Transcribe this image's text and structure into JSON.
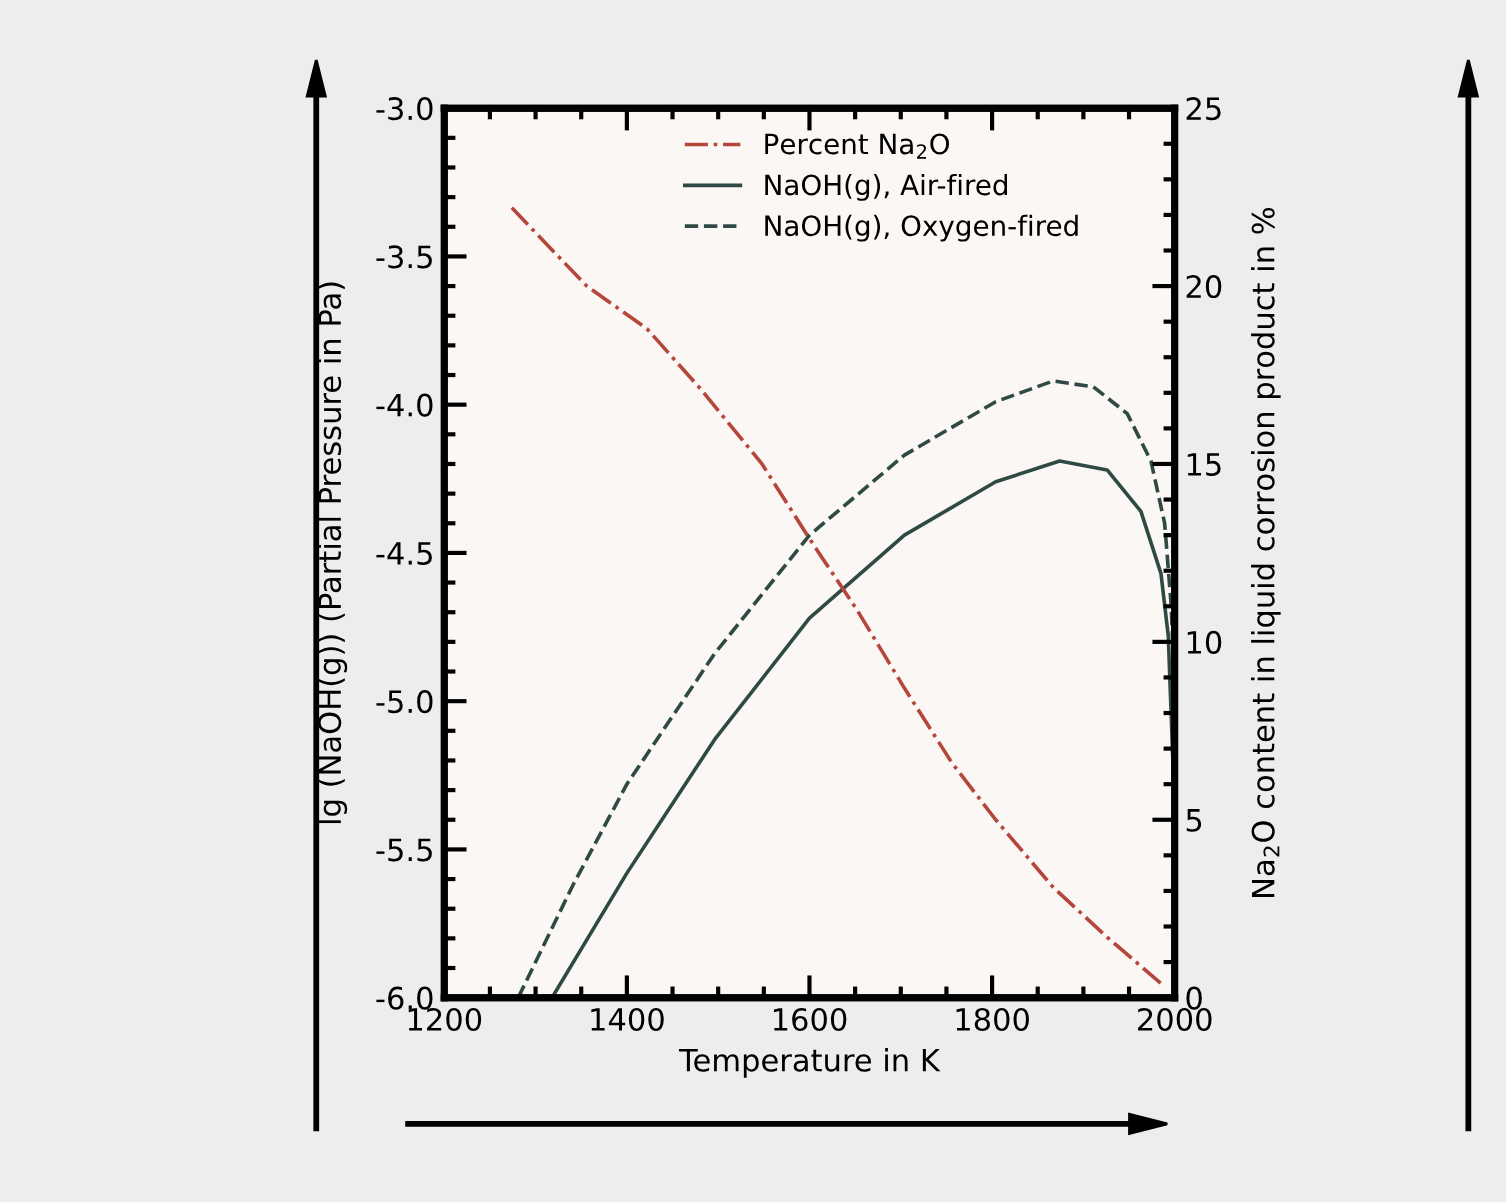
{
  "chart_data": {
    "type": "line",
    "xlabel": "Temperature in K",
    "ylabel": "lg (NaOH(g)) (Partial Pressure in Pa)",
    "y2label": "Na$_{2}$O content in liquid corrosion product in %",
    "xlim": [
      1200,
      2000
    ],
    "xticks": [
      1200,
      1400,
      1600,
      1800,
      2000
    ],
    "ylim": [
      -6.0,
      -3.0
    ],
    "yticks": [
      {
        "value": -6.0,
        "label": "-6.0"
      },
      {
        "value": -5.5,
        "label": "-5.5"
      },
      {
        "value": -5.0,
        "label": "-5.0"
      },
      {
        "value": -4.5,
        "label": "-4.5"
      },
      {
        "value": -4.0,
        "label": "-4.0"
      },
      {
        "value": -3.5,
        "label": "-3.5"
      },
      {
        "value": -3.0,
        "label": "-3.0"
      }
    ],
    "y2lim": [
      0,
      25
    ],
    "y2ticks": [
      0,
      5,
      10,
      15,
      20,
      25
    ],
    "legend": "top",
    "grid": false,
    "marker": "none",
    "series": [
      {
        "name": "Percent Na$_{2}$O",
        "color": "#b5463a",
        "axis": "y2",
        "line_style": "dashdot",
        "x": [
          1274,
          1356,
          1422,
          1481,
          1548,
          1600,
          1652,
          1704,
          1756,
          1804,
          1867,
          1926,
          1985
        ],
        "values": [
          22.2,
          20.0,
          18.8,
          17.1,
          15.0,
          12.9,
          10.9,
          8.7,
          6.6,
          5.0,
          3.1,
          1.7,
          0.4
        ]
      },
      {
        "name": "NaOH(g), Air-fired",
        "color": "#2f4a44",
        "axis": "y",
        "line_style": "solid",
        "x": [
          1318,
          1400,
          1496,
          1600,
          1704,
          1804,
          1874,
          1926,
          1963,
          1985,
          1993,
          2000
        ],
        "values": [
          -6.0,
          -5.58,
          -5.13,
          -4.72,
          -4.44,
          -4.26,
          -4.19,
          -4.22,
          -4.36,
          -4.57,
          -4.78,
          -5.37
        ]
      },
      {
        "name": "NaOH(g), Oxygen-fired",
        "color": "#2f4a44",
        "axis": "y",
        "line_style": "dashed",
        "x": [
          1281,
          1341,
          1400,
          1496,
          1600,
          1704,
          1804,
          1867,
          1911,
          1948,
          1974,
          1989,
          1996,
          2000
        ],
        "values": [
          -6.0,
          -5.62,
          -5.28,
          -4.84,
          -4.44,
          -4.17,
          -3.99,
          -3.92,
          -3.94,
          -4.03,
          -4.19,
          -4.4,
          -4.67,
          -4.95
        ]
      }
    ]
  }
}
